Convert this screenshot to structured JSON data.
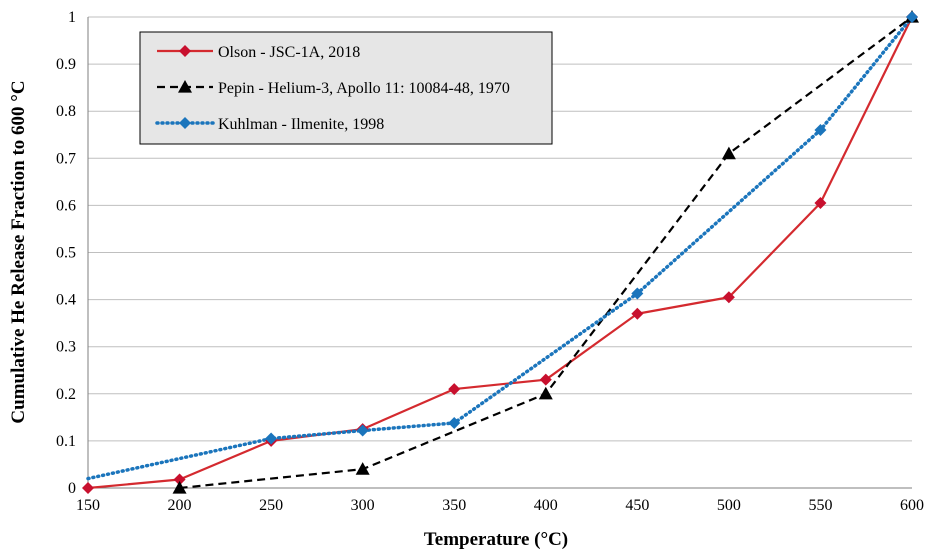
{
  "chart_data": {
    "type": "line",
    "title": "",
    "xlabel": "Temperature (°C)",
    "ylabel": "Cumulative He Release Fraction to 600 °C",
    "xlim": [
      150,
      600
    ],
    "ylim": [
      0,
      1
    ],
    "x_ticks": [
      150,
      200,
      250,
      300,
      350,
      400,
      450,
      500,
      550,
      600
    ],
    "y_ticks": [
      "0",
      "0.1",
      "0.2",
      "0.3",
      "0.4",
      "0.5",
      "0.6",
      "0.7",
      "0.8",
      "0.9",
      "1"
    ],
    "grid": "horizontal",
    "legend_position": "top-left",
    "series": [
      {
        "name": "Olson - JSC-1A, 2018",
        "color": "#d42a2f",
        "line_style": "solid",
        "marker": "diamond",
        "marker_color": "#c8102e",
        "x": [
          150,
          200,
          250,
          300,
          350,
          400,
          450,
          500,
          550,
          600
        ],
        "y": [
          0,
          0.018,
          0.1,
          0.125,
          0.21,
          0.23,
          0.37,
          0.405,
          0.605,
          1.0
        ]
      },
      {
        "name": "Pepin - Helium-3, Apollo 11: 10084-48, 1970",
        "color": "#000000",
        "line_style": "dashed",
        "marker": "triangle",
        "marker_color": "#000000",
        "x": [
          200,
          300,
          400,
          500,
          600
        ],
        "y": [
          0,
          0.04,
          0.2,
          0.71,
          1.0
        ]
      },
      {
        "name": "Kuhlman - Ilmenite, 1998",
        "color": "#1b75bc",
        "line_style": "dotted",
        "marker": "diamond",
        "marker_color": "#1b75bc",
        "x": [
          250,
          300,
          350,
          450,
          550,
          600
        ],
        "y": [
          0.105,
          0.122,
          0.138,
          0.413,
          0.76,
          1.0
        ],
        "trend_start": [
          150,
          0.02
        ]
      }
    ]
  }
}
